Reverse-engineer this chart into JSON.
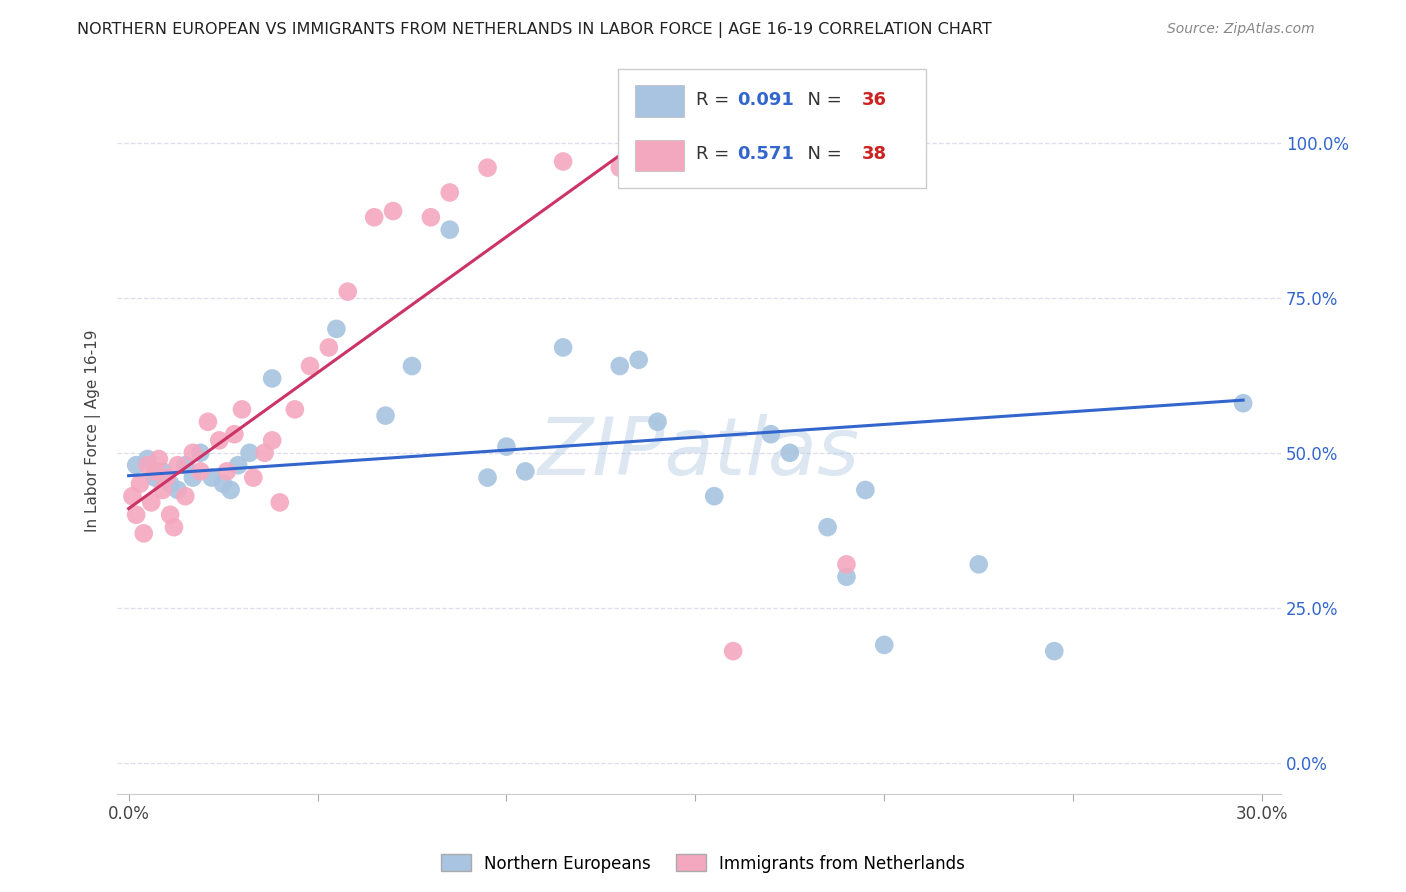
{
  "title": "NORTHERN EUROPEAN VS IMMIGRANTS FROM NETHERLANDS IN LABOR FORCE | AGE 16-19 CORRELATION CHART",
  "source": "Source: ZipAtlas.com",
  "ylabel": "In Labor Force | Age 16-19",
  "xlim": [
    -0.003,
    0.305
  ],
  "ylim": [
    -0.05,
    1.12
  ],
  "ytick_values": [
    0.0,
    0.25,
    0.5,
    0.75,
    1.0
  ],
  "xtick_values": [
    0.0,
    0.05,
    0.1,
    0.15,
    0.2,
    0.25,
    0.3
  ],
  "blue_R": "0.091",
  "blue_N": "36",
  "pink_R": "0.571",
  "pink_N": "38",
  "blue_color": "#a8c4e0",
  "pink_color": "#f4a8c0",
  "blue_line_color": "#3366cc",
  "pink_line_color": "#cc3366",
  "watermark": "ZIPatlas",
  "blue_points_x": [
    0.002,
    0.005,
    0.007,
    0.009,
    0.011,
    0.013,
    0.015,
    0.017,
    0.019,
    0.022,
    0.025,
    0.027,
    0.029,
    0.032,
    0.038,
    0.055,
    0.068,
    0.075,
    0.085,
    0.095,
    0.1,
    0.105,
    0.115,
    0.13,
    0.135,
    0.14,
    0.155,
    0.17,
    0.175,
    0.185,
    0.19,
    0.195,
    0.2,
    0.225,
    0.245,
    0.295
  ],
  "blue_points_y": [
    0.48,
    0.49,
    0.46,
    0.47,
    0.45,
    0.44,
    0.48,
    0.46,
    0.5,
    0.46,
    0.45,
    0.44,
    0.48,
    0.5,
    0.62,
    0.7,
    0.56,
    0.64,
    0.86,
    0.46,
    0.51,
    0.47,
    0.67,
    0.64,
    0.65,
    0.55,
    0.43,
    0.53,
    0.5,
    0.38,
    0.3,
    0.44,
    0.19,
    0.32,
    0.18,
    0.58
  ],
  "pink_points_x": [
    0.001,
    0.002,
    0.003,
    0.004,
    0.005,
    0.006,
    0.007,
    0.008,
    0.009,
    0.01,
    0.011,
    0.012,
    0.013,
    0.015,
    0.017,
    0.019,
    0.021,
    0.024,
    0.026,
    0.028,
    0.03,
    0.033,
    0.036,
    0.038,
    0.04,
    0.044,
    0.048,
    0.053,
    0.058,
    0.065,
    0.07,
    0.08,
    0.085,
    0.095,
    0.115,
    0.13,
    0.16,
    0.19
  ],
  "pink_points_y": [
    0.43,
    0.4,
    0.45,
    0.37,
    0.48,
    0.42,
    0.47,
    0.49,
    0.44,
    0.46,
    0.4,
    0.38,
    0.48,
    0.43,
    0.5,
    0.47,
    0.55,
    0.52,
    0.47,
    0.53,
    0.57,
    0.46,
    0.5,
    0.52,
    0.42,
    0.57,
    0.64,
    0.67,
    0.76,
    0.88,
    0.89,
    0.88,
    0.92,
    0.96,
    0.97,
    0.96,
    0.18,
    0.32
  ],
  "background_color": "#ffffff",
  "grid_color": "#ddddee",
  "blue_line_x": [
    0.0,
    0.295
  ],
  "blue_line_y": [
    0.463,
    0.585
  ],
  "pink_line_x": [
    0.0,
    0.13
  ],
  "pink_line_y": [
    0.41,
    0.98
  ]
}
